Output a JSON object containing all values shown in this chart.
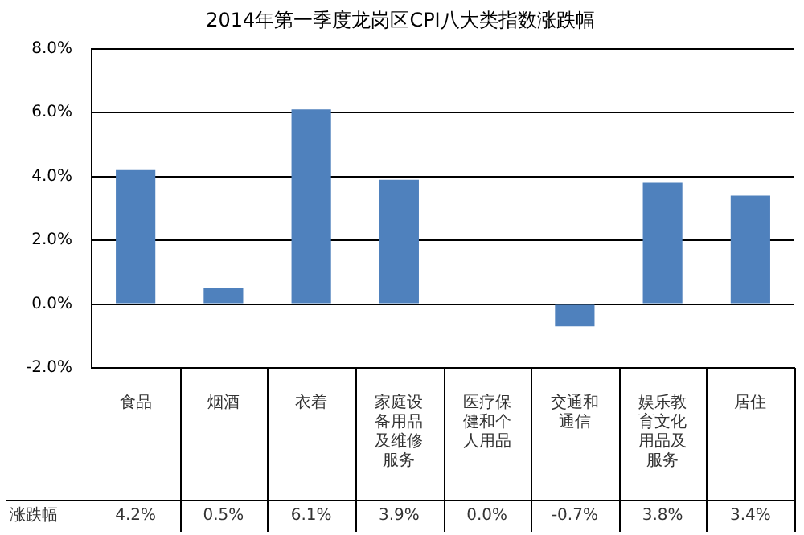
{
  "chart_data": {
    "type": "bar",
    "title": "2014年第一季度龙岗区CPI八大类指数涨跌幅",
    "categories": [
      "食品",
      "烟酒",
      "衣着",
      "家庭设备用品及维修服务",
      "医疗保健和个人用品",
      "交通和通信",
      "娱乐教育文化用品及服务",
      "居住"
    ],
    "values": [
      4.2,
      0.5,
      6.1,
      3.9,
      0.0,
      -0.7,
      3.8,
      3.4
    ],
    "value_labels": [
      "4.2%",
      "0.5%",
      "6.1%",
      "3.9%",
      "0.0%",
      "-0.7%",
      "3.8%",
      "3.4%"
    ],
    "color": "#4f81bd",
    "ylim": [
      -2,
      8
    ],
    "yticks": [
      {
        "value": -2,
        "label": "-2.0%"
      },
      {
        "value": 0,
        "label": "0.0%"
      },
      {
        "value": 2,
        "label": "2.0%"
      },
      {
        "value": 4,
        "label": "4.0%"
      },
      {
        "value": 6,
        "label": "6.0%"
      },
      {
        "value": 8,
        "label": "8.0%"
      }
    ],
    "grid": "y",
    "legend": false,
    "annotations": [
      "涨跌幅"
    ]
  }
}
